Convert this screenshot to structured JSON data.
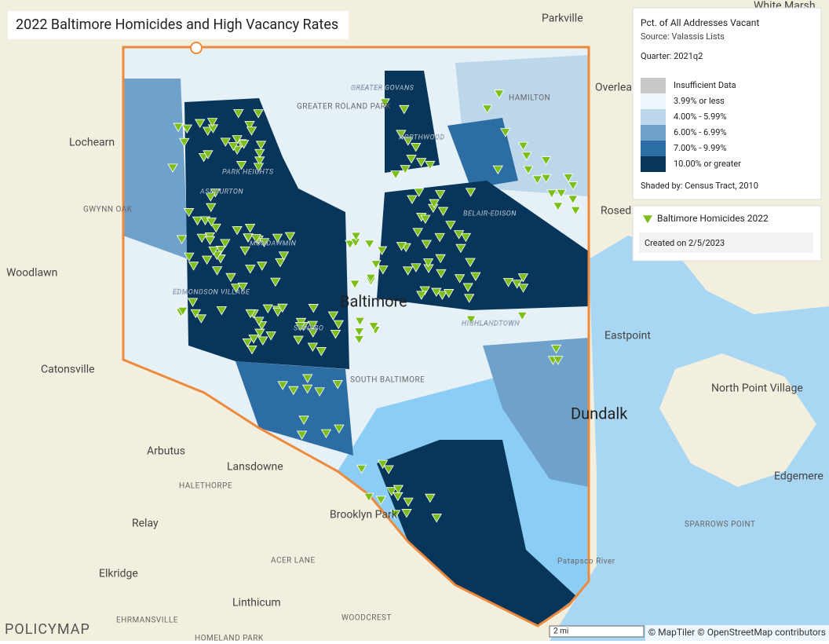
{
  "header": {
    "title": "2022 Baltimore Homicides and High Vacancy Rates"
  },
  "legend": {
    "title": "Pct. of All Addresses Vacant",
    "source": "Source: Valassis Lists",
    "quarter": "Quarter: 2021q2",
    "items": [
      {
        "label": "Insufficient Data",
        "color": "#c8c8c8"
      },
      {
        "label": "3.99% or less",
        "color": "#eef5fb"
      },
      {
        "label": "4.00% - 5.99%",
        "color": "#bcd6ea"
      },
      {
        "label": "6.00% - 6.99%",
        "color": "#6fa2cb"
      },
      {
        "label": "7.00% - 9.99%",
        "color": "#2c6ea3"
      },
      {
        "label": "10.00% or greater",
        "color": "#08365a"
      }
    ],
    "shaded_by": "Shaded by: Census Tract, 2010",
    "points": {
      "label": "Baltimore Homicides 2022",
      "color": "#7cbf1a"
    },
    "created": "Created on 2/5/2023"
  },
  "map": {
    "places": [
      "White Marsh",
      "Parkville",
      "Overlea",
      "Lochearn",
      "Rosed",
      "Woodlawn",
      "Catonsville",
      "Arbutus",
      "Lansdowne",
      "HALETHORPE",
      "Relay",
      "Brooklyn Park",
      "Elkridge",
      "Linthicum",
      "ACER LANE",
      "WOODCREST",
      "EHRMANSVILLE",
      "HOMELAND PARK",
      "Dundalk",
      "Eastpoint",
      "North Point Village",
      "Edgemere",
      "SPARROWS POINT",
      "Patapsco River",
      "Baltimore",
      "GREATER GOVANS",
      "GREATER ROLAND PARK",
      "HAMILTON",
      "NORTHWOOD",
      "PARK HEIGHTS",
      "ASHBURTON",
      "GWYNN OAK",
      "MONDAWMIN",
      "BELAIR-EDISON",
      "EDMONDSON VILLAGE",
      "SOWEBO",
      "HIGHLANDTOWN",
      "SOUTH BALTIMORE"
    ],
    "scale": "2 mi",
    "attribution": "© MapTiler © OpenStreetMap contributors",
    "logo": "POLICYMAP"
  }
}
